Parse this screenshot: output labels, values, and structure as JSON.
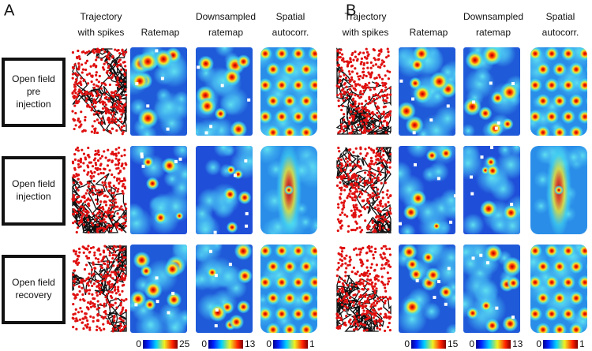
{
  "panels": [
    {
      "label": "A",
      "columns": [
        [
          "Trajectory",
          "with spikes"
        ],
        [
          "Ratemap"
        ],
        [
          "Downsampled",
          "ratemap"
        ],
        [
          "Spatial",
          "autocorr."
        ]
      ],
      "colorbars": [
        [
          0,
          25
        ],
        [
          0,
          13
        ],
        [
          0,
          1
        ]
      ]
    },
    {
      "label": "B",
      "columns": [
        [
          "Trajectory",
          "with spikes"
        ],
        [
          "Ratemap"
        ],
        [
          "Downsampled",
          "ratemap"
        ],
        [
          "Spatial",
          "autocorr."
        ]
      ],
      "colorbars": [
        [
          0,
          15
        ],
        [
          0,
          13
        ],
        [
          0,
          1
        ]
      ]
    }
  ],
  "rows": [
    [
      "Open field",
      "pre",
      "injection"
    ],
    [
      "Open field",
      "injection"
    ],
    [
      "Open field",
      "recovery"
    ]
  ]
}
